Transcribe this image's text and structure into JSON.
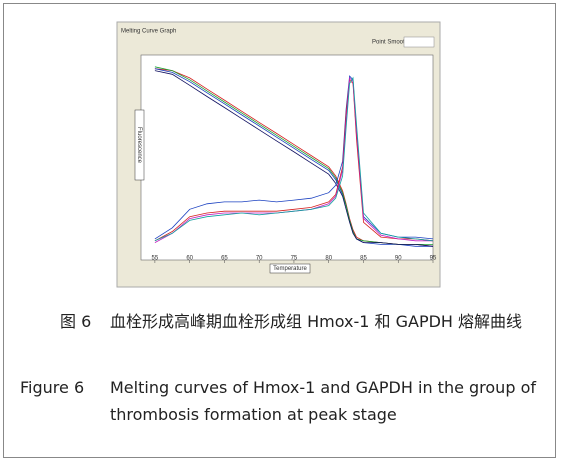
{
  "chart_data": {
    "type": "line",
    "title": "Melting Curve Graph",
    "option_label": "Point Smooth",
    "x_label": "Temperature",
    "y_label": "Fluorescence",
    "x": [
      55,
      57.5,
      60,
      62.5,
      65,
      67.5,
      70,
      72.5,
      75,
      77.5,
      80,
      81,
      82,
      82.5,
      83,
      83.5,
      84,
      85,
      87.5,
      90,
      92.5,
      95
    ],
    "xlim": [
      53,
      95
    ],
    "xticks": [
      55,
      60,
      65,
      70,
      75,
      80,
      85,
      90,
      95
    ],
    "ylim": [
      0,
      100
    ],
    "series": [
      {
        "color": "#d62020",
        "values": [
          98,
          97,
          93,
          87,
          81,
          75,
          69,
          63,
          57,
          51,
          45,
          40,
          32,
          25,
          17,
          11,
          7,
          5,
          4,
          3,
          3,
          2
        ]
      },
      {
        "color": "#1a40c0",
        "values": [
          98,
          96,
          91,
          85,
          79,
          73,
          67,
          61,
          55,
          49,
          43,
          38,
          30,
          24,
          16,
          10,
          6,
          4,
          3,
          3,
          2,
          2
        ]
      },
      {
        "color": "#18a030",
        "values": [
          99,
          97,
          92,
          86,
          80,
          74,
          68,
          62,
          56,
          50,
          44,
          39,
          31,
          24,
          16,
          10,
          6,
          5,
          4,
          3,
          3,
          3
        ]
      },
      {
        "color": "#101060",
        "values": [
          97,
          95,
          89,
          83,
          77,
          71,
          65,
          59,
          53,
          47,
          41,
          36,
          29,
          22,
          15,
          9,
          6,
          4,
          4,
          3,
          3,
          2
        ]
      },
      {
        "color": "#1a40c0",
        "values": [
          6,
          12,
          22,
          25,
          26,
          26,
          27,
          26,
          27,
          28,
          31,
          35,
          48,
          76,
          94,
          92,
          62,
          18,
          9,
          7,
          7,
          6
        ]
      },
      {
        "color": "#d62020",
        "values": [
          5,
          10,
          18,
          20,
          21,
          21,
          21,
          21,
          22,
          23,
          26,
          30,
          45,
          74,
          92,
          90,
          60,
          15,
          7,
          6,
          6,
          5
        ]
      },
      {
        "color": "#c020c0",
        "values": [
          4,
          9,
          17,
          19,
          20,
          20,
          20,
          20,
          21,
          22,
          25,
          29,
          43,
          70,
          93,
          91,
          64,
          17,
          8,
          6,
          5,
          5
        ]
      },
      {
        "color": "#10a0a0",
        "values": [
          5,
          9,
          16,
          18,
          19,
          20,
          19,
          20,
          21,
          22,
          24,
          28,
          40,
          66,
          90,
          93,
          68,
          20,
          9,
          7,
          6,
          5
        ]
      }
    ]
  },
  "caption": {
    "zh_label": "图 6",
    "zh_text": "血栓形成高峰期血栓形成组 Hmox-1 和 GAPDH 熔解曲线",
    "en_label": "Figure 6",
    "en_text": "Melting curves of Hmox-1 and GAPDH in the group of thrombosis formation at peak stage"
  }
}
